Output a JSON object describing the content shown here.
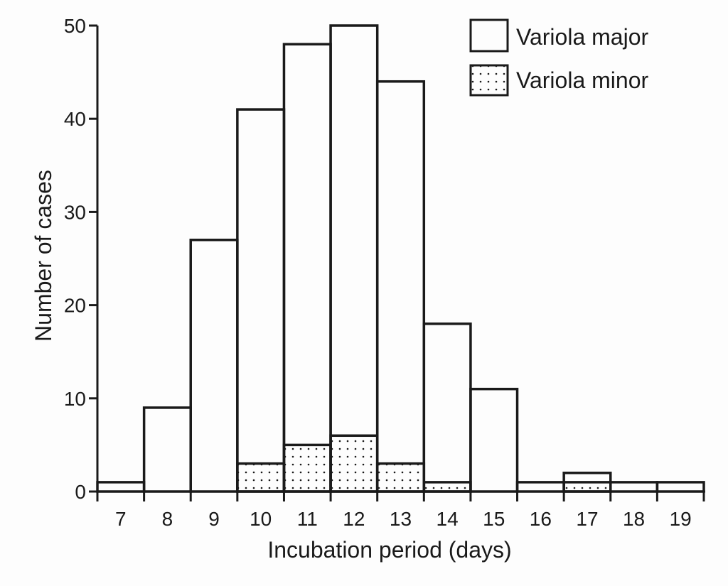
{
  "chart_data": {
    "type": "bar",
    "subtype": "histogram-step",
    "title": "",
    "xlabel": "Incubation period (days)",
    "ylabel": "Number of cases",
    "categories": [
      "7",
      "8",
      "9",
      "10",
      "11",
      "12",
      "13",
      "14",
      "15",
      "16",
      "17",
      "18",
      "19"
    ],
    "series": [
      {
        "name": "Variola major",
        "fill": "none",
        "values": [
          1,
          9,
          27,
          41,
          48,
          50,
          44,
          18,
          11,
          1,
          2,
          1,
          1
        ]
      },
      {
        "name": "Variola minor",
        "fill": "dotted",
        "values": [
          0,
          0,
          0,
          3,
          5,
          6,
          3,
          1,
          0,
          0,
          1,
          0,
          0
        ]
      }
    ],
    "ylim": [
      0,
      50
    ],
    "yticks": [
      "0",
      "10",
      "20",
      "30",
      "40",
      "50"
    ],
    "grid": false,
    "legend_position": "top-right",
    "colors": {
      "ink": "#1a1a1a",
      "background": "#fdfdfd"
    }
  }
}
